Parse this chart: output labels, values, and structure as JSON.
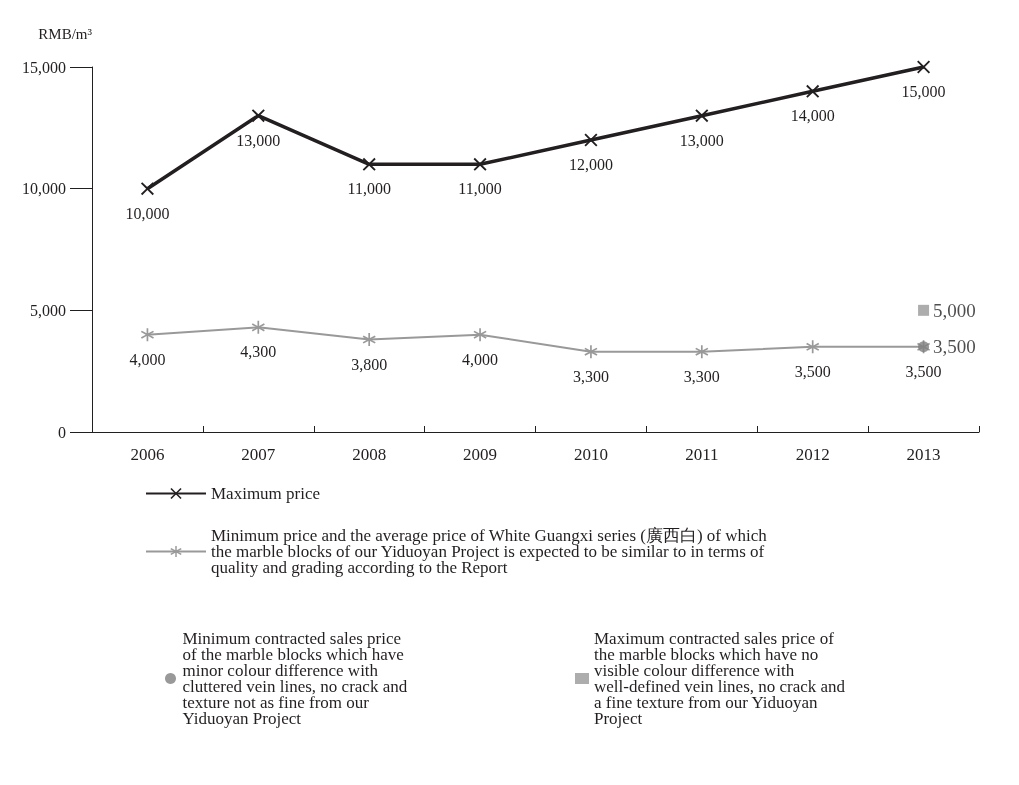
{
  "chart_data": {
    "type": "line",
    "ylabel": "RMB/m³",
    "categories": [
      "2006",
      "2007",
      "2008",
      "2009",
      "2010",
      "2011",
      "2012",
      "2013"
    ],
    "ylim": [
      0,
      15000
    ],
    "yticks": [
      0,
      {
        "value": 5000,
        "label": "5,000"
      },
      {
        "value": 10000,
        "label": "10,000"
      },
      {
        "value": 15000,
        "label": "15,000"
      }
    ],
    "grid": false,
    "legend": "bottom",
    "series": [
      {
        "name": "Maximum price",
        "color": "#231f20",
        "marker": "cross",
        "values": [
          10000,
          13000,
          11000,
          11000,
          12000,
          13000,
          14000,
          15000
        ],
        "value_labels": [
          "10,000",
          "13,000",
          "11,000",
          "11,000",
          "12,000",
          "13,000",
          "14,000",
          "15,000"
        ]
      },
      {
        "name": "Minimum price and the average price of White Guangxi series (廣西白) of which the marble blocks of our Yiduoyan Project is expected to be similar to in terms of quality and grading according to the Report",
        "color": "#999999",
        "marker": "star",
        "values": [
          4000,
          4300,
          3800,
          4000,
          3300,
          3300,
          3500,
          3500
        ],
        "value_labels": [
          "4,000",
          "4,300",
          "3,800",
          "4,000",
          "3,300",
          "3,300",
          "3,500",
          "3,500"
        ]
      },
      {
        "name": "Minimum contracted sales price of the marble blocks which have minor colour difference with cluttered vein lines, no crack and texture not as fine from our Yiduoyan Project",
        "type": "scatter",
        "color": "#808080",
        "marker": "circle",
        "values": [
          null,
          null,
          null,
          null,
          null,
          null,
          null,
          3500
        ],
        "value_labels": [
          null,
          null,
          null,
          null,
          null,
          null,
          null,
          "3,500"
        ]
      },
      {
        "name": "Maximum contracted sales price of the marble blocks which have no visible colour difference with well-defined vein lines, no crack and a fine texture from our Yiduoyan Project",
        "type": "scatter",
        "color": "#999999",
        "marker": "square",
        "values": [
          null,
          null,
          null,
          null,
          null,
          null,
          null,
          5000
        ],
        "value_labels": [
          null,
          null,
          null,
          null,
          null,
          null,
          null,
          "5,000"
        ]
      }
    ]
  }
}
